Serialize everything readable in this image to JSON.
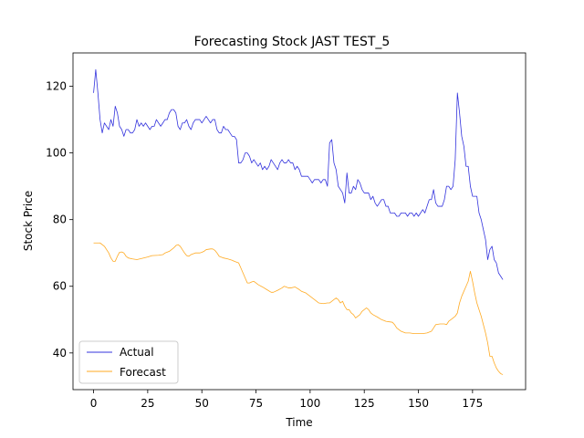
{
  "chart_data": {
    "type": "line",
    "title": "Forecasting Stock JAST TEST_5",
    "xlabel": "Time",
    "ylabel": "Stock Price",
    "xlim": [
      -9.5,
      199.5
    ],
    "ylim": [
      29,
      130
    ],
    "xticks": [
      0,
      25,
      50,
      75,
      100,
      125,
      150,
      175
    ],
    "yticks": [
      40,
      60,
      80,
      100,
      120
    ],
    "grid": false,
    "legend_position": "lower-left",
    "colors": {
      "actual": "#3333dd",
      "forecast": "#ffaa22"
    },
    "series": [
      {
        "name": "Actual",
        "points": [
          [
            0,
            118
          ],
          [
            1,
            125
          ],
          [
            2,
            118
          ],
          [
            3,
            110
          ],
          [
            4,
            106
          ],
          [
            5,
            109
          ],
          [
            6,
            108
          ],
          [
            7,
            107
          ],
          [
            8,
            110
          ],
          [
            9,
            108
          ],
          [
            10,
            114
          ],
          [
            11,
            112
          ],
          [
            12,
            108
          ],
          [
            13,
            107
          ],
          [
            14,
            105
          ],
          [
            15,
            107
          ],
          [
            16,
            107
          ],
          [
            17,
            106
          ],
          [
            18,
            106
          ],
          [
            19,
            107
          ],
          [
            20,
            110
          ],
          [
            21,
            108
          ],
          [
            22,
            109
          ],
          [
            23,
            108
          ],
          [
            24,
            109
          ],
          [
            25,
            108
          ],
          [
            26,
            107
          ],
          [
            27,
            108
          ],
          [
            28,
            108
          ],
          [
            29,
            110
          ],
          [
            30,
            109
          ],
          [
            31,
            108
          ],
          [
            32,
            109
          ],
          [
            33,
            110
          ],
          [
            34,
            110
          ],
          [
            35,
            112
          ],
          [
            36,
            113
          ],
          [
            37,
            113
          ],
          [
            38,
            112
          ],
          [
            39,
            108
          ],
          [
            40,
            107
          ],
          [
            41,
            109
          ],
          [
            42,
            109
          ],
          [
            43,
            110
          ],
          [
            44,
            108
          ],
          [
            45,
            107
          ],
          [
            46,
            109
          ],
          [
            47,
            110
          ],
          [
            48,
            110
          ],
          [
            49,
            110
          ],
          [
            50,
            109
          ],
          [
            51,
            110
          ],
          [
            52,
            111
          ],
          [
            53,
            110
          ],
          [
            54,
            109
          ],
          [
            55,
            110
          ],
          [
            56,
            110
          ],
          [
            57,
            107
          ],
          [
            58,
            106
          ],
          [
            59,
            106
          ],
          [
            60,
            108
          ],
          [
            61,
            107
          ],
          [
            62,
            107
          ],
          [
            63,
            106
          ],
          [
            64,
            105
          ],
          [
            65,
            105
          ],
          [
            66,
            104
          ],
          [
            67,
            97
          ],
          [
            68,
            97
          ],
          [
            69,
            98
          ],
          [
            70,
            100
          ],
          [
            71,
            100
          ],
          [
            72,
            99
          ],
          [
            73,
            97
          ],
          [
            74,
            98
          ],
          [
            75,
            97
          ],
          [
            76,
            96
          ],
          [
            77,
            97
          ],
          [
            78,
            95
          ],
          [
            79,
            96
          ],
          [
            80,
            95
          ],
          [
            81,
            96
          ],
          [
            82,
            98
          ],
          [
            83,
            97
          ],
          [
            84,
            96
          ],
          [
            85,
            95
          ],
          [
            86,
            97
          ],
          [
            87,
            98
          ],
          [
            88,
            97
          ],
          [
            89,
            97
          ],
          [
            90,
            98
          ],
          [
            91,
            97
          ],
          [
            92,
            97
          ],
          [
            93,
            95
          ],
          [
            94,
            96
          ],
          [
            95,
            95
          ],
          [
            96,
            93
          ],
          [
            97,
            93
          ],
          [
            98,
            93
          ],
          [
            99,
            93
          ],
          [
            100,
            92
          ],
          [
            101,
            91
          ],
          [
            102,
            92
          ],
          [
            103,
            92
          ],
          [
            104,
            92
          ],
          [
            105,
            91
          ],
          [
            106,
            92
          ],
          [
            107,
            92
          ],
          [
            108,
            90
          ],
          [
            109,
            103
          ],
          [
            110,
            104
          ],
          [
            111,
            97
          ],
          [
            112,
            95
          ],
          [
            113,
            90
          ],
          [
            114,
            89
          ],
          [
            115,
            88
          ],
          [
            116,
            85
          ],
          [
            117,
            94
          ],
          [
            118,
            88
          ],
          [
            119,
            88
          ],
          [
            120,
            90
          ],
          [
            121,
            89
          ],
          [
            122,
            92
          ],
          [
            123,
            91
          ],
          [
            124,
            89
          ],
          [
            125,
            88
          ],
          [
            126,
            88
          ],
          [
            127,
            88
          ],
          [
            128,
            86
          ],
          [
            129,
            87
          ],
          [
            130,
            85
          ],
          [
            131,
            84
          ],
          [
            132,
            85
          ],
          [
            133,
            86
          ],
          [
            134,
            86
          ],
          [
            135,
            84
          ],
          [
            136,
            84
          ],
          [
            137,
            82
          ],
          [
            138,
            82
          ],
          [
            139,
            82
          ],
          [
            140,
            81
          ],
          [
            141,
            81
          ],
          [
            142,
            82
          ],
          [
            143,
            82
          ],
          [
            144,
            82
          ],
          [
            145,
            81
          ],
          [
            146,
            82
          ],
          [
            147,
            82
          ],
          [
            148,
            81
          ],
          [
            149,
            82
          ],
          [
            150,
            81
          ],
          [
            151,
            82
          ],
          [
            152,
            83
          ],
          [
            153,
            82
          ],
          [
            154,
            84
          ],
          [
            155,
            86
          ],
          [
            156,
            86
          ],
          [
            157,
            89
          ],
          [
            158,
            85
          ],
          [
            159,
            84
          ],
          [
            160,
            84
          ],
          [
            161,
            84
          ],
          [
            162,
            86
          ],
          [
            163,
            90
          ],
          [
            164,
            90
          ],
          [
            165,
            89
          ],
          [
            166,
            90
          ],
          [
            167,
            98
          ],
          [
            168,
            118
          ],
          [
            169,
            112
          ],
          [
            170,
            105
          ],
          [
            171,
            102
          ],
          [
            172,
            96
          ],
          [
            173,
            96
          ],
          [
            174,
            90
          ],
          [
            175,
            87
          ],
          [
            176,
            87
          ],
          [
            177,
            87
          ],
          [
            178,
            82
          ],
          [
            179,
            80
          ],
          [
            180,
            77
          ],
          [
            181,
            74
          ],
          [
            182,
            68
          ],
          [
            183,
            71
          ],
          [
            184,
            72
          ],
          [
            185,
            68
          ],
          [
            186,
            67
          ],
          [
            187,
            64
          ],
          [
            188,
            63
          ],
          [
            189,
            62
          ]
        ]
      },
      {
        "name": "Forecast",
        "points": [
          [
            0,
            73
          ],
          [
            3,
            73
          ],
          [
            5,
            72
          ],
          [
            7,
            70
          ],
          [
            8,
            68.5
          ],
          [
            9,
            67.5
          ],
          [
            10,
            67.5
          ],
          [
            11,
            69
          ],
          [
            12,
            70.2
          ],
          [
            13,
            70.3
          ],
          [
            14,
            70
          ],
          [
            15,
            69
          ],
          [
            16,
            68.5
          ],
          [
            18,
            68.2
          ],
          [
            20,
            68
          ],
          [
            22,
            68.3
          ],
          [
            25,
            68.8
          ],
          [
            27,
            69.2
          ],
          [
            30,
            69.3
          ],
          [
            32,
            69.5
          ],
          [
            33,
            70
          ],
          [
            35,
            70.5
          ],
          [
            37,
            71.5
          ],
          [
            38,
            72.2
          ],
          [
            39,
            72.5
          ],
          [
            40,
            72
          ],
          [
            41,
            71
          ],
          [
            42,
            70
          ],
          [
            43,
            69.2
          ],
          [
            44,
            69
          ],
          [
            45,
            69.5
          ],
          [
            47,
            70
          ],
          [
            49,
            70
          ],
          [
            50,
            70.2
          ],
          [
            51,
            70.5
          ],
          [
            52,
            71
          ],
          [
            54,
            71.2
          ],
          [
            55,
            71.2
          ],
          [
            56,
            70.8
          ],
          [
            57,
            70
          ],
          [
            58,
            69
          ],
          [
            60,
            68.5
          ],
          [
            62,
            68.2
          ],
          [
            64,
            67.8
          ],
          [
            65,
            67.5
          ],
          [
            67,
            67
          ],
          [
            68,
            65.5
          ],
          [
            69,
            64
          ],
          [
            70,
            62.5
          ],
          [
            71,
            61
          ],
          [
            72,
            61
          ],
          [
            73,
            61.3
          ],
          [
            74,
            61.5
          ],
          [
            75,
            61
          ],
          [
            76,
            60.5
          ],
          [
            78,
            59.8
          ],
          [
            80,
            59
          ],
          [
            82,
            58.2
          ],
          [
            83,
            58.2
          ],
          [
            85,
            58.8
          ],
          [
            87,
            59.5
          ],
          [
            88,
            60
          ],
          [
            89,
            59.8
          ],
          [
            90,
            59.5
          ],
          [
            91,
            59.5
          ],
          [
            93,
            59.8
          ],
          [
            95,
            59
          ],
          [
            96,
            58.5
          ],
          [
            98,
            58
          ],
          [
            100,
            57
          ],
          [
            102,
            56
          ],
          [
            104,
            55
          ],
          [
            106,
            54.8
          ],
          [
            108,
            55
          ],
          [
            109,
            55
          ],
          [
            110,
            55.5
          ],
          [
            111,
            56
          ],
          [
            112,
            56.5
          ],
          [
            113,
            56
          ],
          [
            114,
            55
          ],
          [
            115,
            55.5
          ],
          [
            116,
            54
          ],
          [
            117,
            53
          ],
          [
            118,
            53
          ],
          [
            119,
            52
          ],
          [
            120,
            51.5
          ],
          [
            121,
            50.5
          ],
          [
            122,
            51
          ],
          [
            123,
            51.5
          ],
          [
            124,
            52.5
          ],
          [
            125,
            53
          ],
          [
            126,
            53.5
          ],
          [
            127,
            53
          ],
          [
            128,
            52
          ],
          [
            129,
            51.5
          ],
          [
            131,
            50.8
          ],
          [
            133,
            50
          ],
          [
            135,
            49.5
          ],
          [
            137,
            49.3
          ],
          [
            138,
            49.2
          ],
          [
            139,
            48.5
          ],
          [
            140,
            47.5
          ],
          [
            142,
            46.5
          ],
          [
            144,
            46
          ],
          [
            146,
            46
          ],
          [
            148,
            45.8
          ],
          [
            150,
            45.8
          ],
          [
            152,
            45.8
          ],
          [
            154,
            46
          ],
          [
            156,
            46.5
          ],
          [
            157,
            47.5
          ],
          [
            158,
            48.5
          ],
          [
            160,
            48.7
          ],
          [
            162,
            48.7
          ],
          [
            163,
            48.5
          ],
          [
            164,
            49.5
          ],
          [
            165,
            50
          ],
          [
            166,
            50.5
          ],
          [
            167,
            51
          ],
          [
            168,
            52
          ],
          [
            169,
            55
          ],
          [
            170,
            57
          ],
          [
            171,
            58.5
          ],
          [
            172,
            60
          ],
          [
            173,
            61.5
          ],
          [
            174,
            64.5
          ],
          [
            175,
            61.5
          ],
          [
            176,
            58
          ],
          [
            177,
            55
          ],
          [
            178,
            53
          ],
          [
            179,
            51
          ],
          [
            180,
            48.5
          ],
          [
            181,
            46
          ],
          [
            182,
            43
          ],
          [
            183,
            39
          ],
          [
            184,
            39
          ],
          [
            185,
            37
          ],
          [
            186,
            35.5
          ],
          [
            187,
            34.5
          ],
          [
            188,
            33.8
          ],
          [
            189,
            33.5
          ]
        ]
      }
    ]
  }
}
